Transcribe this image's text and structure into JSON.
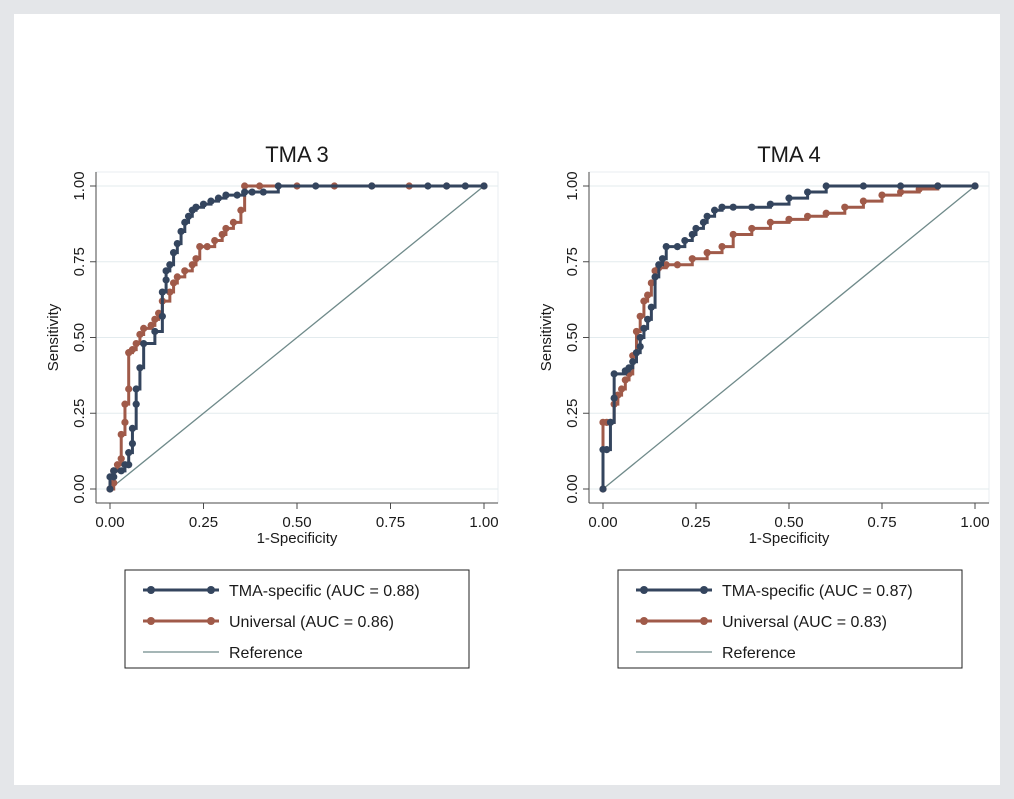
{
  "chart_data": [
    {
      "type": "line",
      "title": "TMA 3",
      "xlabel": "1-Specificity",
      "ylabel": "Sensitivity",
      "xlim": [
        0,
        1
      ],
      "ylim": [
        0,
        1
      ],
      "xticks": [
        "0.00",
        "0.25",
        "0.50",
        "0.75",
        "1.00"
      ],
      "yticks": [
        "0.00",
        "0.25",
        "0.50",
        "0.75",
        "1.00"
      ],
      "grid": true,
      "legend_position": "bottom",
      "series": [
        {
          "name": "TMA-specific (AUC = 0.88)",
          "color": "#34455e",
          "x": [
            0,
            0,
            0.01,
            0.01,
            0.03,
            0.04,
            0.05,
            0.05,
            0.06,
            0.06,
            0.07,
            0.07,
            0.08,
            0.09,
            0.12,
            0.14,
            0.14,
            0.15,
            0.15,
            0.16,
            0.17,
            0.18,
            0.19,
            0.2,
            0.21,
            0.22,
            0.23,
            0.25,
            0.27,
            0.29,
            0.31,
            0.34,
            0.36,
            0.38,
            0.41,
            0.45,
            0.55,
            0.7,
            0.85,
            0.9,
            0.95,
            1.0
          ],
          "y": [
            0,
            0.04,
            0.04,
            0.06,
            0.06,
            0.08,
            0.08,
            0.12,
            0.15,
            0.2,
            0.28,
            0.33,
            0.4,
            0.48,
            0.52,
            0.57,
            0.65,
            0.69,
            0.72,
            0.74,
            0.78,
            0.81,
            0.85,
            0.88,
            0.9,
            0.92,
            0.93,
            0.94,
            0.95,
            0.96,
            0.97,
            0.97,
            0.98,
            0.98,
            0.98,
            1.0,
            1.0,
            1.0,
            1.0,
            1.0,
            1.0,
            1.0
          ]
        },
        {
          "name": "Universal (AUC = 0.86)",
          "color": "#a05a49",
          "x": [
            0,
            0.01,
            0.01,
            0.02,
            0.03,
            0.03,
            0.04,
            0.04,
            0.05,
            0.05,
            0.06,
            0.07,
            0.08,
            0.09,
            0.11,
            0.12,
            0.13,
            0.14,
            0.16,
            0.17,
            0.18,
            0.2,
            0.22,
            0.23,
            0.24,
            0.26,
            0.28,
            0.3,
            0.31,
            0.33,
            0.35,
            0.36,
            0.4,
            0.5,
            0.6,
            0.7,
            0.8,
            0.9,
            1.0
          ],
          "y": [
            0,
            0.02,
            0.06,
            0.08,
            0.1,
            0.18,
            0.22,
            0.28,
            0.33,
            0.45,
            0.46,
            0.48,
            0.51,
            0.53,
            0.54,
            0.56,
            0.58,
            0.62,
            0.65,
            0.68,
            0.7,
            0.72,
            0.74,
            0.76,
            0.8,
            0.8,
            0.82,
            0.84,
            0.86,
            0.88,
            0.92,
            1.0,
            1.0,
            1.0,
            1.0,
            1.0,
            1.0,
            1.0,
            1.0
          ]
        },
        {
          "name": "Reference",
          "color": "#6f8a8a",
          "x": [
            0,
            1
          ],
          "y": [
            0,
            1
          ]
        }
      ]
    },
    {
      "type": "line",
      "title": "TMA 4",
      "xlabel": "1-Specificity",
      "ylabel": "Sensitivity",
      "xlim": [
        0,
        1
      ],
      "ylim": [
        0,
        1
      ],
      "xticks": [
        "0.00",
        "0.25",
        "0.50",
        "0.75",
        "1.00"
      ],
      "yticks": [
        "0.00",
        "0.25",
        "0.50",
        "0.75",
        "1.00"
      ],
      "grid": true,
      "legend_position": "bottom",
      "series": [
        {
          "name": "TMA-specific (AUC = 0.87)",
          "color": "#34455e",
          "x": [
            0,
            0,
            0.01,
            0.02,
            0.03,
            0.03,
            0.06,
            0.07,
            0.08,
            0.09,
            0.1,
            0.1,
            0.11,
            0.12,
            0.13,
            0.14,
            0.15,
            0.16,
            0.17,
            0.2,
            0.22,
            0.24,
            0.25,
            0.27,
            0.28,
            0.3,
            0.32,
            0.35,
            0.4,
            0.45,
            0.5,
            0.55,
            0.6,
            0.7,
            0.8,
            0.9,
            1.0
          ],
          "y": [
            0,
            0.13,
            0.13,
            0.22,
            0.3,
            0.38,
            0.39,
            0.4,
            0.42,
            0.45,
            0.47,
            0.5,
            0.53,
            0.56,
            0.6,
            0.7,
            0.74,
            0.76,
            0.8,
            0.8,
            0.82,
            0.84,
            0.86,
            0.88,
            0.9,
            0.92,
            0.93,
            0.93,
            0.93,
            0.94,
            0.96,
            0.98,
            1.0,
            1.0,
            1.0,
            1.0,
            1.0
          ]
        },
        {
          "name": "Universal (AUC = 0.83)",
          "color": "#a05a49",
          "x": [
            0,
            0,
            0.01,
            0.02,
            0.03,
            0.04,
            0.05,
            0.06,
            0.07,
            0.08,
            0.09,
            0.1,
            0.11,
            0.12,
            0.13,
            0.14,
            0.15,
            0.17,
            0.2,
            0.24,
            0.28,
            0.32,
            0.35,
            0.4,
            0.45,
            0.5,
            0.55,
            0.6,
            0.65,
            0.7,
            0.75,
            0.8,
            0.85,
            0.9,
            1.0
          ],
          "y": [
            0,
            0.22,
            0.22,
            0.22,
            0.28,
            0.31,
            0.33,
            0.36,
            0.38,
            0.44,
            0.52,
            0.57,
            0.62,
            0.64,
            0.68,
            0.72,
            0.73,
            0.74,
            0.74,
            0.76,
            0.78,
            0.8,
            0.84,
            0.86,
            0.88,
            0.89,
            0.9,
            0.91,
            0.93,
            0.95,
            0.97,
            0.98,
            0.99,
            1.0,
            1.0
          ]
        },
        {
          "name": "Reference",
          "color": "#6f8a8a",
          "x": [
            0,
            1
          ],
          "y": [
            0,
            1
          ]
        }
      ]
    }
  ]
}
